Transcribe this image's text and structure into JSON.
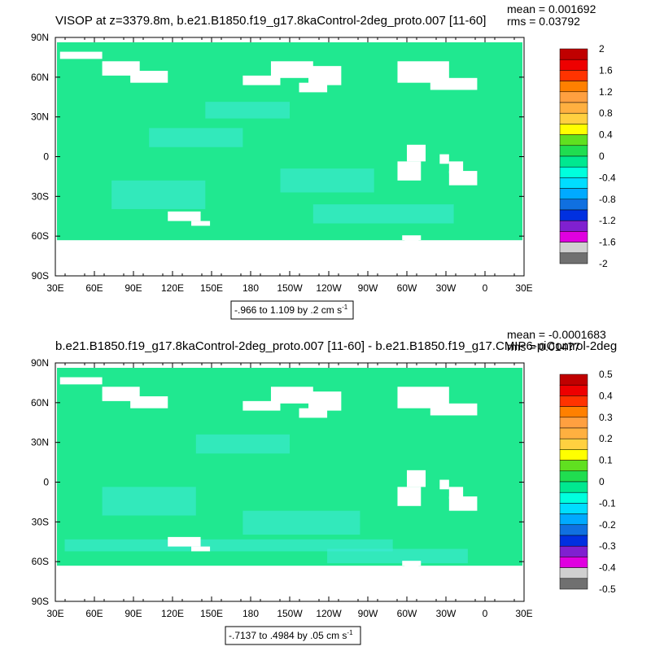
{
  "chart_data": [
    {
      "type": "heatmap",
      "title": "VISOP at z=3379.8m, b.e21.B1850.f19_g17.8kaControl-2deg_proto.007 [11-60]",
      "stats": [
        "mean = 0.001692",
        "rms = 0.03792"
      ],
      "range_note": "-.966 to 1.109 by .2 cm s",
      "range_unit_exp": "-1",
      "x_ticks": [
        "30E",
        "60E",
        "90E",
        "120E",
        "150E",
        "180",
        "150W",
        "120W",
        "90W",
        "60W",
        "30W",
        "0",
        "30E"
      ],
      "y_ticks": [
        "90N",
        "60N",
        "30N",
        "0",
        "30S",
        "60S",
        "90S"
      ],
      "colorbar_labels": [
        "2",
        "1.6",
        "1.2",
        "0.8",
        "0.4",
        "0",
        "-0.4",
        "-0.8",
        "-1.2",
        "-1.6",
        "-2"
      ],
      "colorbar_colors": [
        "#c00000",
        "#ee0000",
        "#ff3300",
        "#ff8000",
        "#ffa040",
        "#ffb040",
        "#ffd040",
        "#ffff00",
        "#60e020",
        "#20dd50",
        "#00e890",
        "#00ffdd",
        "#00ddff",
        "#00aaff",
        "#1070e0",
        "#0030e0",
        "#8020d0",
        "#e000e0",
        "#d0d0d0",
        "#707070"
      ]
    },
    {
      "type": "heatmap",
      "title": "b.e21.B1850.f19_g17.8kaControl-2deg_proto.007 [11-60] - b.e21.B1850.f19_g17.CMIP6-piControl-2deg",
      "stats": [
        "mean = -0.0001683",
        "rms = 0.01477"
      ],
      "range_note": "-.7137 to .4984 by .05 cm s",
      "range_unit_exp": "-1",
      "x_ticks": [
        "30E",
        "60E",
        "90E",
        "120E",
        "150E",
        "180",
        "150W",
        "120W",
        "90W",
        "60W",
        "30W",
        "0",
        "30E"
      ],
      "y_ticks": [
        "90N",
        "60N",
        "30N",
        "0",
        "30S",
        "60S",
        "90S"
      ],
      "colorbar_labels": [
        "0.5",
        "0.4",
        "0.3",
        "0.2",
        "0.1",
        "0",
        "-0.1",
        "-0.2",
        "-0.3",
        "-0.4",
        "-0.5"
      ],
      "colorbar_colors": [
        "#c00000",
        "#ee0000",
        "#ff3300",
        "#ff8000",
        "#ffa040",
        "#ffb040",
        "#ffd040",
        "#ffff00",
        "#60e020",
        "#20dd50",
        "#00e890",
        "#00ffdd",
        "#00ddff",
        "#00aaff",
        "#1070e0",
        "#0030e0",
        "#8020d0",
        "#e000e0",
        "#d0d0d0",
        "#707070"
      ]
    }
  ]
}
